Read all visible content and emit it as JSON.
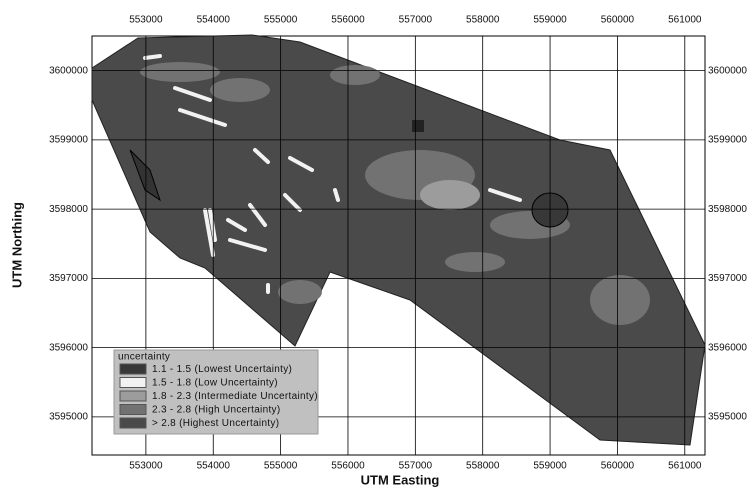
{
  "map": {
    "x_axis_title": "UTM Easting",
    "y_axis_title": "UTM Northing",
    "xlim": [
      552200,
      561300
    ],
    "ylim": [
      3594450,
      3600500
    ],
    "xticks": [
      553000,
      554000,
      555000,
      556000,
      557000,
      558000,
      559000,
      560000,
      561000
    ],
    "yticks": [
      3595000,
      3596000,
      3597000,
      3598000,
      3599000,
      3600000
    ],
    "grid": true,
    "legend": {
      "title": "uncertainty",
      "items": [
        {
          "label": "1.1 - 1.5 (Lowest Uncertainty)",
          "color": "#383838"
        },
        {
          "label": "1.5 - 1.8 (Low  Uncertainty)",
          "color": "#f2f2f2"
        },
        {
          "label": "1.8 - 2.3 (Intermediate Uncertainty)",
          "color": "#9c9c9c"
        },
        {
          "label": "2.3 - 2.8 (High Uncertainty)",
          "color": "#727272"
        },
        {
          "label": "> 2.8 (Highest Uncertainty)",
          "color": "#4a4a4a"
        }
      ]
    }
  }
}
